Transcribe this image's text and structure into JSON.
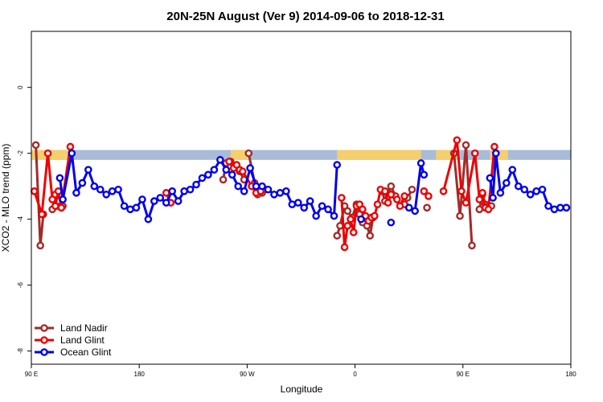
{
  "chart_data": {
    "type": "line",
    "title": "20N-25N August (Ver 9)   2014-09-06 to 2018-12-31",
    "xlabel": "Longitude",
    "ylabel": "XCO2 - MLO trend (ppm)",
    "xlim": [
      0,
      360
    ],
    "ylim": [
      -8.4,
      1.7
    ],
    "x_ticks": [
      {
        "value": 0,
        "label": "90 E"
      },
      {
        "value": 72,
        "label": "180"
      },
      {
        "value": 144,
        "label": "90 W"
      },
      {
        "value": 216,
        "label": "0"
      },
      {
        "value": 288,
        "label": "90 E"
      },
      {
        "value": 360,
        "label": "180"
      }
    ],
    "y_ticks": [
      {
        "value": 0,
        "label": "0"
      },
      {
        "value": -2,
        "label": "-2"
      },
      {
        "value": -4,
        "label": "-4"
      },
      {
        "value": -6,
        "label": "-6"
      },
      {
        "value": -8,
        "label": "-8"
      }
    ],
    "grid": false,
    "legend_position": "bottom-left",
    "background_band": {
      "y_range": [
        -2.2,
        -1.9
      ],
      "ocean_color": "#a8bcd8",
      "land_color": "#f5cf6e",
      "land_segments": [
        [
          0,
          27
        ],
        [
          133,
          145
        ],
        [
          204,
          260
        ],
        [
          270,
          285
        ],
        [
          306,
          318
        ]
      ]
    },
    "series": [
      {
        "name": "Land Nadir",
        "color": "#a52a2a",
        "segments": [
          {
            "x": [
              3,
              6,
              8
            ],
            "y": [
              -1.75,
              -4.8,
              -3.85
            ]
          },
          {
            "x": [
              14,
              16,
              17,
              18,
              20,
              21
            ],
            "y": [
              -3.7,
              -3.25,
              -3.6,
              -3.45,
              -3.65,
              -3.6
            ]
          },
          {
            "x": [
              128,
              130,
              133,
              136,
              139,
              142
            ],
            "y": [
              -2.8,
              -2.3,
              -2.25,
              -2.4,
              -2.55,
              -2.8
            ]
          },
          {
            "x": [
              145,
              149,
              151,
              154,
              156
            ],
            "y": [
              -2.0,
              -2.9,
              -3.25,
              -3.2,
              -3.1
            ]
          },
          {
            "x": [
              204,
              206,
              209,
              211,
              214,
              217,
              219,
              221,
              224,
              226,
              228
            ],
            "y": [
              -4.5,
              -4.2,
              -3.6,
              -3.75,
              -3.95,
              -3.55,
              -3.85,
              -4.1,
              -4.2,
              -4.5,
              -3.95
            ]
          },
          {
            "x": [
              234,
              236,
              238,
              240,
              243
            ],
            "y": [
              -3.15,
              -3.45,
              -3.2,
              -3.0,
              -3.3
            ]
          },
          {
            "x": [
              249,
              251,
              254
            ],
            "y": [
              -3.55,
              -3.35,
              -3.1
            ]
          },
          {
            "x": [
              282,
              286,
              290,
              294
            ],
            "y": [
              -2.0,
              -3.9,
              -1.75,
              -4.8
            ]
          },
          {
            "x": [
              299,
              301,
              303,
              305,
              307
            ],
            "y": [
              -3.7,
              -3.25,
              -3.55,
              -3.6,
              -3.6
            ]
          },
          {
            "x": [
              264
            ],
            "y": [
              -3.65
            ]
          }
        ]
      },
      {
        "name": "Land Glint",
        "color": "#ee0000",
        "segments": [
          {
            "x": [
              2,
              7,
              11,
              14,
              16,
              18,
              20,
              26
            ],
            "y": [
              -3.15,
              -3.85,
              -2.0,
              -3.4,
              -3.6,
              -3.15,
              -3.65,
              -1.8
            ]
          },
          {
            "x": [
              90,
              93
            ],
            "y": [
              -3.2,
              -3.5
            ]
          },
          {
            "x": [
              132,
              135,
              137,
              139,
              141,
              147,
              150,
              153
            ],
            "y": [
              -2.25,
              -2.45,
              -2.35,
              -2.5,
              -2.55,
              -3.0,
              -3.2,
              -3.15
            ]
          },
          {
            "x": [
              207,
              209,
              211,
              213,
              215,
              217,
              219,
              221,
              223,
              225,
              227,
              229,
              231,
              233,
              236,
              238,
              240
            ],
            "y": [
              -3.35,
              -4.85,
              -4.2,
              -4.0,
              -4.4,
              -3.6,
              -3.55,
              -3.7,
              -3.9,
              -4.05,
              -3.95,
              -3.9,
              -3.55,
              -3.1,
              -3.15,
              -3.5,
              -3.25
            ]
          },
          {
            "x": [
              244,
              246,
              249
            ],
            "y": [
              -3.4,
              -3.6,
              -3.3
            ]
          },
          {
            "x": [
              262,
              265
            ],
            "y": [
              -3.15,
              -3.3
            ]
          },
          {
            "x": [
              275,
              284,
              287,
              290,
              296,
              299,
              301,
              303,
              305,
              309
            ],
            "y": [
              -3.15,
              -1.6,
              -3.15,
              -3.5,
              -2.0,
              -3.4,
              -3.2,
              -3.65,
              -3.7,
              -1.8
            ]
          }
        ]
      },
      {
        "name": "Ocean Glint",
        "color": "#0000ee",
        "segments": [
          {
            "x": [
              19,
              21,
              27,
              30,
              34,
              38,
              42,
              46,
              50,
              54,
              58,
              62,
              66,
              70,
              74,
              78,
              82,
              86,
              90,
              94,
              98,
              102,
              106,
              110,
              114,
              118,
              122,
              126,
              130,
              134,
              138,
              142,
              146,
              150,
              154,
              158,
              162,
              166,
              170,
              174,
              178,
              182,
              186,
              190,
              194,
              198,
              202,
              204
            ],
            "y": [
              -2.75,
              -3.4,
              -2.0,
              -3.2,
              -2.9,
              -2.5,
              -3.0,
              -3.1,
              -3.25,
              -3.15,
              -3.1,
              -3.6,
              -3.7,
              -3.65,
              -3.4,
              -4.0,
              -3.45,
              -3.35,
              -3.5,
              -3.15,
              -3.45,
              -3.15,
              -3.1,
              -2.95,
              -2.75,
              -2.65,
              -2.5,
              -2.2,
              -2.5,
              -2.65,
              -3.0,
              -3.15,
              -2.45,
              -3.0,
              -3.0,
              -3.1,
              -3.25,
              -3.2,
              -3.15,
              -3.55,
              -3.5,
              -3.65,
              -3.45,
              -3.9,
              -3.6,
              -3.7,
              -3.9,
              -2.35
            ]
          },
          {
            "x": [
              220
            ],
            "y": [
              -4.0
            ]
          },
          {
            "x": [
              240
            ],
            "y": [
              -4.1
            ]
          },
          {
            "x": [
              252,
              256,
              260,
              262
            ],
            "y": [
              -3.65,
              -3.75,
              -2.3,
              -2.65
            ]
          },
          {
            "x": [
              306,
              308,
              310,
              313,
              317,
              321,
              325,
              329,
              333,
              337,
              341,
              345,
              349,
              353,
              357
            ],
            "y": [
              -2.75,
              -3.35,
              -2.0,
              -3.2,
              -2.9,
              -2.5,
              -3.0,
              -3.1,
              -3.25,
              -3.15,
              -3.1,
              -3.6,
              -3.7,
              -3.65,
              -3.65
            ]
          }
        ]
      }
    ]
  }
}
